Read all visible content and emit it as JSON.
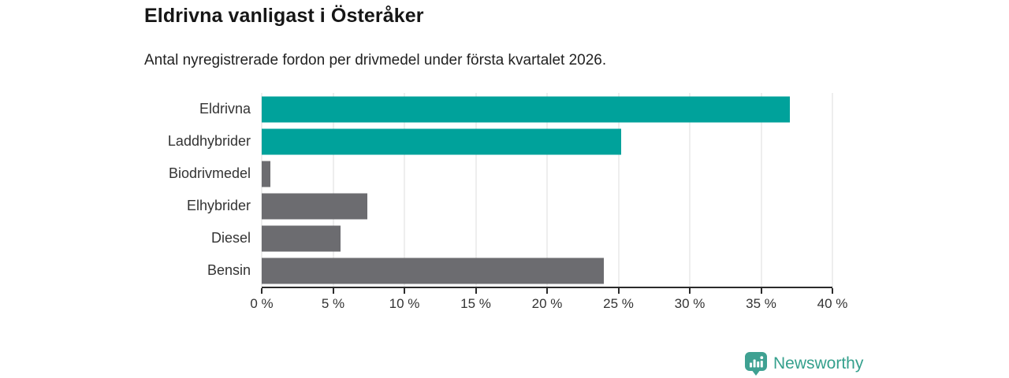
{
  "chart_data": {
    "type": "bar",
    "orientation": "horizontal",
    "title": "Eldrivna vanligast i Österåker",
    "subtitle": "Antal nyregistrerade fordon per drivmedel under första kvartalet 2026.",
    "categories": [
      "Eldrivna",
      "Laddhybrider",
      "Biodrivmedel",
      "Elhybrider",
      "Diesel",
      "Bensin"
    ],
    "values": [
      37,
      25.2,
      0.6,
      7.4,
      5.5,
      24
    ],
    "unit": "%",
    "bar_colors": [
      "#00a29b",
      "#00a29b",
      "#6c6c70",
      "#6c6c70",
      "#6c6c70",
      "#6c6c70"
    ],
    "accent_color": "#00a29b",
    "neutral_color": "#6c6c70",
    "xlim": [
      0,
      40
    ],
    "x_ticks": [
      0,
      5,
      10,
      15,
      20,
      25,
      30,
      35,
      40
    ],
    "x_tick_labels": [
      "0 %",
      "5 %",
      "10 %",
      "15 %",
      "20 %",
      "25 %",
      "30 %",
      "35 %",
      "40 %"
    ],
    "grid": "vertical",
    "gridline_color": "#dcdcdc",
    "legend": "none"
  },
  "branding": {
    "logo_text": "Newsworthy",
    "logo_color": "#35a08d",
    "logo_icon": "bar-chart-pin-icon"
  }
}
